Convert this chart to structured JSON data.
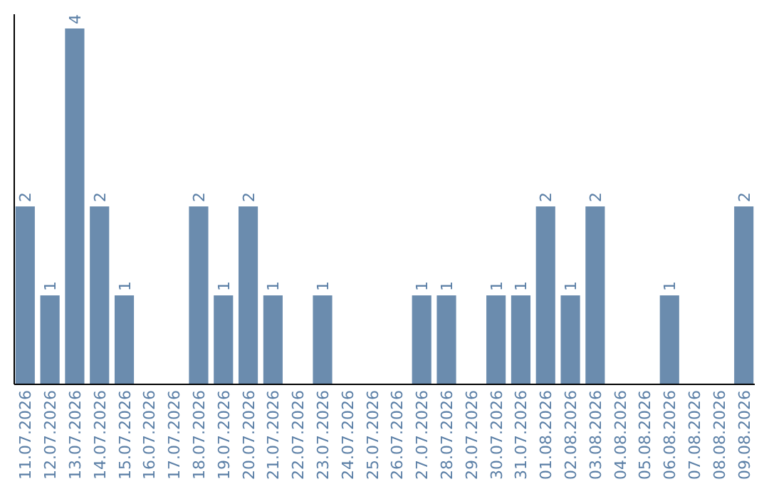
{
  "chart_data": {
    "type": "bar",
    "categories": [
      "11.07.2026",
      "12.07.2026",
      "13.07.2026",
      "14.07.2026",
      "15.07.2026",
      "16.07.2026",
      "17.07.2026",
      "18.07.2026",
      "19.07.2026",
      "20.07.2026",
      "21.07.2026",
      "22.07.2026",
      "23.07.2026",
      "24.07.2026",
      "25.07.2026",
      "26.07.2026",
      "27.07.2026",
      "28.07.2026",
      "29.07.2026",
      "30.07.2026",
      "31.07.2026",
      "01.08.2026",
      "02.08.2026",
      "03.08.2026",
      "04.08.2026",
      "05.08.2026",
      "06.08.2026",
      "07.08.2026",
      "08.08.2026",
      "09.08.2026"
    ],
    "values": [
      2,
      1,
      4,
      2,
      1,
      0,
      0,
      2,
      1,
      2,
      1,
      0,
      1,
      0,
      0,
      0,
      1,
      1,
      0,
      1,
      1,
      2,
      1,
      2,
      0,
      0,
      1,
      0,
      0,
      2
    ],
    "value_labels": [
      "2",
      "1",
      "4",
      "2",
      "1",
      null,
      null,
      "2",
      "1",
      "2",
      "1",
      null,
      "1",
      null,
      null,
      null,
      "1",
      "1",
      null,
      "1",
      "1",
      "2",
      "1",
      "2",
      null,
      null,
      "1",
      null,
      null,
      "2"
    ],
    "color": "#6b8cae",
    "tick_labels": "x"
  }
}
